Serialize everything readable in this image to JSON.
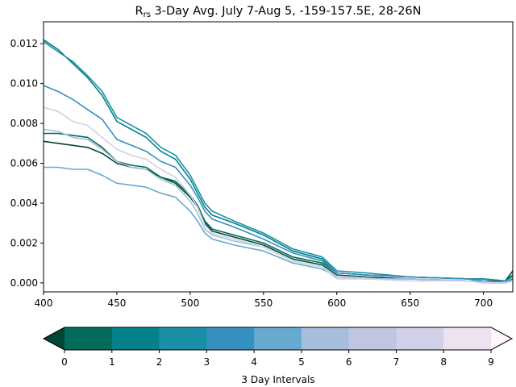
{
  "chart_data": {
    "type": "line",
    "title_main": "R",
    "title_sub": "rs",
    "title_rest": " 3-Day Avg. July 7-Aug 5, -159-157.5E, 28-26N",
    "xlabel": "",
    "ylabel": "",
    "xlim": [
      400,
      720
    ],
    "ylim": [
      -0.00045,
      0.0131
    ],
    "x_ticks": [
      400,
      450,
      500,
      550,
      600,
      650,
      700
    ],
    "y_ticks": [
      "0.000",
      "0.002",
      "0.004",
      "0.006",
      "0.008",
      "0.010",
      "0.012"
    ],
    "y_tick_values": [
      0,
      0.002,
      0.004,
      0.006,
      0.008,
      0.01,
      0.012
    ],
    "grid": false,
    "series": [
      {
        "color": "#014636",
        "points": [
          [
            400,
            0.0071
          ],
          [
            410,
            0.007
          ],
          [
            420,
            0.0069
          ],
          [
            430,
            0.0068
          ],
          [
            440,
            0.0065
          ],
          [
            450,
            0.006
          ],
          [
            460,
            0.0058
          ],
          [
            470,
            0.0057
          ],
          [
            480,
            0.0053
          ],
          [
            490,
            0.005
          ],
          [
            500,
            0.0043
          ],
          [
            505,
            0.0038
          ],
          [
            510,
            0.003
          ],
          [
            515,
            0.0026
          ],
          [
            530,
            0.0023
          ],
          [
            550,
            0.0019
          ],
          [
            570,
            0.0012
          ],
          [
            590,
            0.0009
          ],
          [
            600,
            0.0004
          ],
          [
            620,
            0.0003
          ],
          [
            650,
            0.0002
          ],
          [
            690,
            0.0001
          ],
          [
            700,
            0.0001
          ],
          [
            715,
            0.0001
          ],
          [
            720,
            0.0006
          ]
        ]
      },
      {
        "color": "#016c59",
        "points": [
          [
            400,
            0.0075
          ],
          [
            410,
            0.0075
          ],
          [
            420,
            0.0074
          ],
          [
            430,
            0.0073
          ],
          [
            440,
            0.0068
          ],
          [
            450,
            0.0061
          ],
          [
            460,
            0.0059
          ],
          [
            470,
            0.0058
          ],
          [
            480,
            0.0053
          ],
          [
            490,
            0.0051
          ],
          [
            500,
            0.0044
          ],
          [
            505,
            0.0039
          ],
          [
            510,
            0.0031
          ],
          [
            515,
            0.0027
          ],
          [
            530,
            0.0024
          ],
          [
            550,
            0.002
          ],
          [
            570,
            0.0013
          ],
          [
            590,
            0.001
          ],
          [
            600,
            0.0005
          ],
          [
            620,
            0.0004
          ],
          [
            650,
            0.0003
          ],
          [
            690,
            0.0002
          ],
          [
            700,
            0.0002
          ],
          [
            715,
            0.0001
          ],
          [
            720,
            0.0004
          ]
        ]
      },
      {
        "color": "#02818a",
        "points": [
          [
            400,
            0.0122
          ],
          [
            410,
            0.0117
          ],
          [
            420,
            0.011
          ],
          [
            430,
            0.0103
          ],
          [
            440,
            0.0094
          ],
          [
            450,
            0.0081
          ],
          [
            460,
            0.0077
          ],
          [
            470,
            0.0073
          ],
          [
            480,
            0.0066
          ],
          [
            490,
            0.0062
          ],
          [
            500,
            0.0052
          ],
          [
            505,
            0.0045
          ],
          [
            510,
            0.0038
          ],
          [
            515,
            0.0034
          ],
          [
            530,
            0.003
          ],
          [
            550,
            0.0024
          ],
          [
            570,
            0.0016
          ],
          [
            590,
            0.0012
          ],
          [
            600,
            0.0005
          ],
          [
            620,
            0.0004
          ],
          [
            650,
            0.0003
          ],
          [
            690,
            0.0002
          ],
          [
            700,
            0.0001
          ],
          [
            715,
            0.0
          ],
          [
            720,
            0.0003
          ]
        ]
      },
      {
        "color": "#1b8fa8",
        "points": [
          [
            400,
            0.0121
          ],
          [
            410,
            0.0116
          ],
          [
            420,
            0.0111
          ],
          [
            430,
            0.0104
          ],
          [
            440,
            0.0096
          ],
          [
            450,
            0.0083
          ],
          [
            460,
            0.0079
          ],
          [
            470,
            0.0075
          ],
          [
            480,
            0.0068
          ],
          [
            490,
            0.0064
          ],
          [
            500,
            0.0054
          ],
          [
            505,
            0.0047
          ],
          [
            510,
            0.004
          ],
          [
            515,
            0.0036
          ],
          [
            530,
            0.0031
          ],
          [
            550,
            0.0025
          ],
          [
            570,
            0.0017
          ],
          [
            590,
            0.0013
          ],
          [
            600,
            0.0006
          ],
          [
            620,
            0.0005
          ],
          [
            650,
            0.0003
          ],
          [
            690,
            0.0002
          ],
          [
            700,
            0.0002
          ],
          [
            715,
            0.0001
          ],
          [
            720,
            0.0003
          ]
        ]
      },
      {
        "color": "#3690c0",
        "points": [
          [
            400,
            0.0099
          ],
          [
            410,
            0.0096
          ],
          [
            420,
            0.0092
          ],
          [
            430,
            0.0087
          ],
          [
            440,
            0.0082
          ],
          [
            450,
            0.0072
          ],
          [
            460,
            0.0069
          ],
          [
            470,
            0.0066
          ],
          [
            480,
            0.0061
          ],
          [
            490,
            0.0058
          ],
          [
            500,
            0.0049
          ],
          [
            505,
            0.0043
          ],
          [
            510,
            0.0036
          ],
          [
            515,
            0.0032
          ],
          [
            530,
            0.0028
          ],
          [
            550,
            0.0022
          ],
          [
            570,
            0.0015
          ],
          [
            590,
            0.0011
          ],
          [
            600,
            0.0005
          ],
          [
            620,
            0.0004
          ],
          [
            650,
            0.0003
          ],
          [
            690,
            0.0002
          ],
          [
            700,
            0.0001
          ],
          [
            715,
            0.0
          ],
          [
            720,
            0.0002
          ]
        ]
      },
      {
        "color": "#67a9cf",
        "points": [
          [
            400,
            0.0058
          ],
          [
            410,
            0.0058
          ],
          [
            420,
            0.0057
          ],
          [
            430,
            0.0057
          ],
          [
            440,
            0.0054
          ],
          [
            450,
            0.005
          ],
          [
            460,
            0.0049
          ],
          [
            470,
            0.0048
          ],
          [
            480,
            0.0045
          ],
          [
            490,
            0.0043
          ],
          [
            500,
            0.0036
          ],
          [
            505,
            0.0031
          ],
          [
            510,
            0.0025
          ],
          [
            515,
            0.0022
          ],
          [
            530,
            0.0019
          ],
          [
            550,
            0.0016
          ],
          [
            570,
            0.001
          ],
          [
            590,
            0.0007
          ],
          [
            600,
            0.0003
          ],
          [
            620,
            0.0002
          ],
          [
            650,
            0.0002
          ],
          [
            690,
            0.0001
          ],
          [
            700,
            0.0001
          ],
          [
            715,
            0.0
          ],
          [
            720,
            0.0003
          ]
        ]
      },
      {
        "color": "#a6bddb",
        "points": [
          [
            400,
            0.0077
          ],
          [
            410,
            0.0076
          ],
          [
            420,
            0.0073
          ],
          [
            430,
            0.0072
          ],
          [
            440,
            0.0067
          ],
          [
            450,
            0.0061
          ],
          [
            460,
            0.0058
          ],
          [
            470,
            0.0057
          ],
          [
            480,
            0.0052
          ],
          [
            490,
            0.0049
          ],
          [
            500,
            0.0041
          ],
          [
            505,
            0.0035
          ],
          [
            510,
            0.0027
          ],
          [
            515,
            0.0024
          ],
          [
            530,
            0.0021
          ],
          [
            550,
            0.0018
          ],
          [
            570,
            0.0011
          ],
          [
            590,
            0.0008
          ],
          [
            600,
            0.0003
          ],
          [
            620,
            0.0002
          ],
          [
            650,
            0.0002
          ],
          [
            690,
            0.0001
          ],
          [
            700,
            0.0
          ],
          [
            715,
            0.0
          ],
          [
            720,
            0.0001
          ]
        ]
      },
      {
        "color": "#d0d1e6",
        "points": [
          [
            400,
            0.0088
          ],
          [
            410,
            0.0086
          ],
          [
            420,
            0.0081
          ],
          [
            430,
            0.0079
          ],
          [
            440,
            0.0073
          ],
          [
            450,
            0.0067
          ],
          [
            460,
            0.0064
          ],
          [
            470,
            0.0062
          ],
          [
            480,
            0.0057
          ],
          [
            490,
            0.0053
          ],
          [
            500,
            0.0044
          ],
          [
            505,
            0.0038
          ],
          [
            510,
            0.0029
          ],
          [
            515,
            0.0025
          ],
          [
            530,
            0.0022
          ],
          [
            550,
            0.0018
          ],
          [
            570,
            0.0011
          ],
          [
            590,
            0.0008
          ],
          [
            600,
            0.0002
          ],
          [
            620,
            0.0002
          ],
          [
            650,
            0.0001
          ],
          [
            690,
            0.0001
          ],
          [
            700,
            0.0
          ],
          [
            715,
            0.0
          ],
          [
            720,
            0.0001
          ]
        ]
      }
    ],
    "colorbar": {
      "label": "3 Day Intervals",
      "ticks": [
        "0",
        "1",
        "2",
        "3",
        "4",
        "5",
        "6",
        "7",
        "8",
        "9"
      ],
      "colors": [
        "#016c59",
        "#02818a",
        "#1b8fa8",
        "#3690c0",
        "#67a9cf",
        "#a6bddb",
        "#bfc7e0",
        "#d0d1e6",
        "#ece2f0"
      ],
      "under_color": "#014636",
      "over_color": "#fff7fb"
    }
  }
}
